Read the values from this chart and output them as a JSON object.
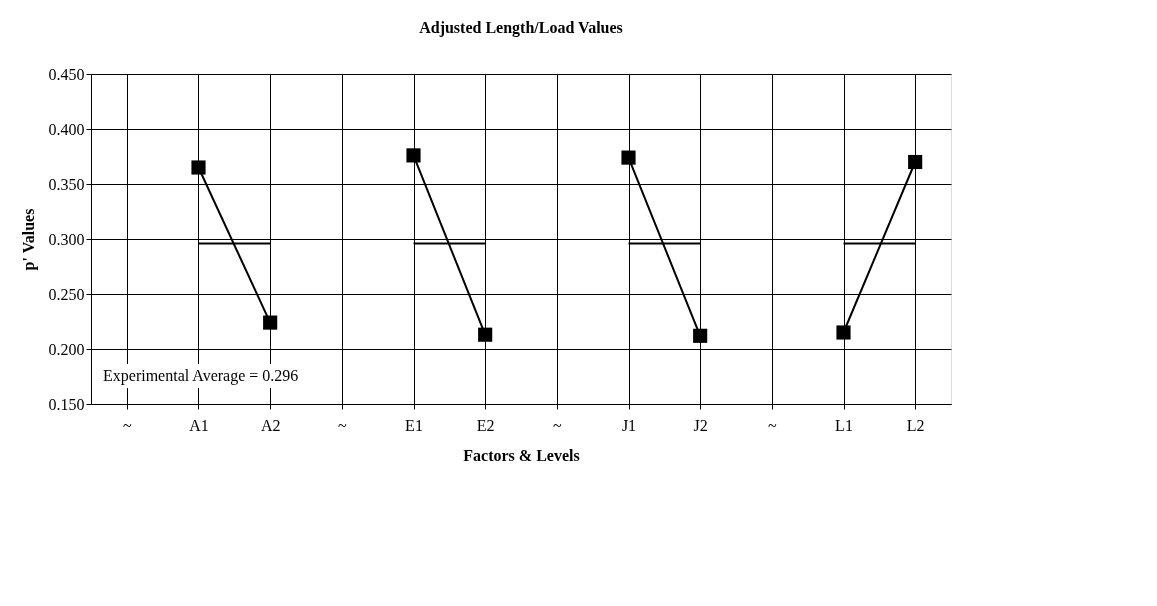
{
  "chart_data": {
    "type": "line",
    "title": "Adjusted Length/Load Values",
    "xlabel": "Factors & Levels",
    "ylabel": "p' Values",
    "categories": [
      "~",
      "A1",
      "A2",
      "~",
      "E1",
      "E2",
      "~",
      "J1",
      "J2",
      "~",
      "L1",
      "L2"
    ],
    "series": [
      {
        "color": "#000000",
        "marker": "square",
        "values": [
          null,
          0.365,
          0.224,
          null,
          0.376,
          0.213,
          null,
          0.374,
          0.212,
          null,
          0.215,
          0.37
        ]
      },
      {
        "color": "#000000",
        "marker": "none",
        "values": [
          null,
          0.296,
          0.296,
          null,
          0.296,
          0.296,
          null,
          0.296,
          0.296,
          null,
          0.296,
          0.296
        ]
      }
    ],
    "ylim": [
      0.15,
      0.45
    ],
    "yticks": [
      {
        "value": 0.15,
        "label": "0.150"
      },
      {
        "value": 0.2,
        "label": "0.200"
      },
      {
        "value": 0.25,
        "label": "0.250"
      },
      {
        "value": 0.3,
        "label": "0.300"
      },
      {
        "value": 0.35,
        "label": "0.350"
      },
      {
        "value": 0.4,
        "label": "0.400"
      },
      {
        "value": 0.45,
        "label": "0.450"
      }
    ],
    "grid": true,
    "annotations": [
      "Experimental Average = 0.296"
    ]
  }
}
